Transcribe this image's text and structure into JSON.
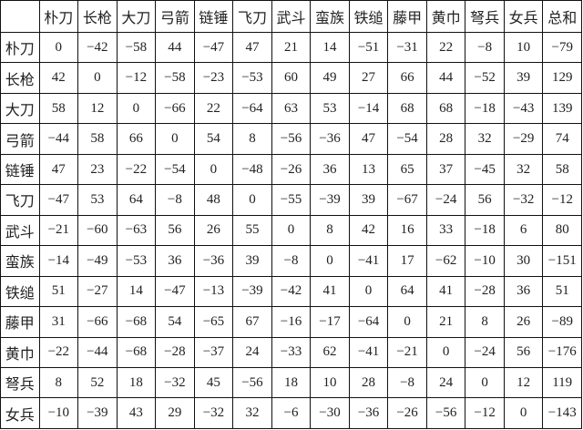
{
  "table": {
    "corner": "",
    "columns": [
      "朴刀",
      "长枪",
      "大刀",
      "弓箭",
      "链锤",
      "飞刀",
      "武斗",
      "蛮族",
      "铁缒",
      "藤甲",
      "黄巾",
      "弩兵",
      "女兵",
      "总和"
    ],
    "rows": [
      {
        "label": "朴刀",
        "values": [
          "0",
          "−42",
          "−58",
          "44",
          "−47",
          "47",
          "21",
          "14",
          "−51",
          "−31",
          "22",
          "−8",
          "10",
          "−79"
        ]
      },
      {
        "label": "长枪",
        "values": [
          "42",
          "0",
          "−12",
          "−58",
          "−23",
          "−53",
          "60",
          "49",
          "27",
          "66",
          "44",
          "−52",
          "39",
          "129"
        ]
      },
      {
        "label": "大刀",
        "values": [
          "58",
          "12",
          "0",
          "−66",
          "22",
          "−64",
          "63",
          "53",
          "−14",
          "68",
          "68",
          "−18",
          "−43",
          "139"
        ]
      },
      {
        "label": "弓箭",
        "values": [
          "−44",
          "58",
          "66",
          "0",
          "54",
          "8",
          "−56",
          "−36",
          "47",
          "−54",
          "28",
          "32",
          "−29",
          "74"
        ]
      },
      {
        "label": "链锤",
        "values": [
          "47",
          "23",
          "−22",
          "−54",
          "0",
          "−48",
          "−26",
          "36",
          "13",
          "65",
          "37",
          "−45",
          "32",
          "58"
        ]
      },
      {
        "label": "飞刀",
        "values": [
          "−47",
          "53",
          "64",
          "−8",
          "48",
          "0",
          "−55",
          "−39",
          "39",
          "−67",
          "−24",
          "56",
          "−32",
          "−12"
        ]
      },
      {
        "label": "武斗",
        "values": [
          "−21",
          "−60",
          "−63",
          "56",
          "26",
          "55",
          "0",
          "8",
          "42",
          "16",
          "33",
          "−18",
          "6",
          "80"
        ]
      },
      {
        "label": "蛮族",
        "values": [
          "−14",
          "−49",
          "−53",
          "36",
          "−36",
          "39",
          "−8",
          "0",
          "−41",
          "17",
          "−62",
          "−10",
          "30",
          "−151"
        ]
      },
      {
        "label": "铁缒",
        "values": [
          "51",
          "−27",
          "14",
          "−47",
          "−13",
          "−39",
          "−42",
          "41",
          "0",
          "64",
          "41",
          "−28",
          "36",
          "51"
        ]
      },
      {
        "label": "藤甲",
        "values": [
          "31",
          "−66",
          "−68",
          "54",
          "−65",
          "67",
          "−16",
          "−17",
          "−64",
          "0",
          "21",
          "8",
          "26",
          "−89"
        ]
      },
      {
        "label": "黄巾",
        "values": [
          "−22",
          "−44",
          "−68",
          "−28",
          "−37",
          "24",
          "−33",
          "62",
          "−41",
          "−21",
          "0",
          "−24",
          "56",
          "−176"
        ]
      },
      {
        "label": "弩兵",
        "values": [
          "8",
          "52",
          "18",
          "−32",
          "45",
          "−56",
          "18",
          "10",
          "28",
          "−8",
          "24",
          "0",
          "12",
          "119"
        ]
      },
      {
        "label": "女兵",
        "values": [
          "−10",
          "−39",
          "43",
          "29",
          "−32",
          "32",
          "−6",
          "−30",
          "−36",
          "−26",
          "−56",
          "−12",
          "0",
          "−143"
        ]
      }
    ]
  }
}
